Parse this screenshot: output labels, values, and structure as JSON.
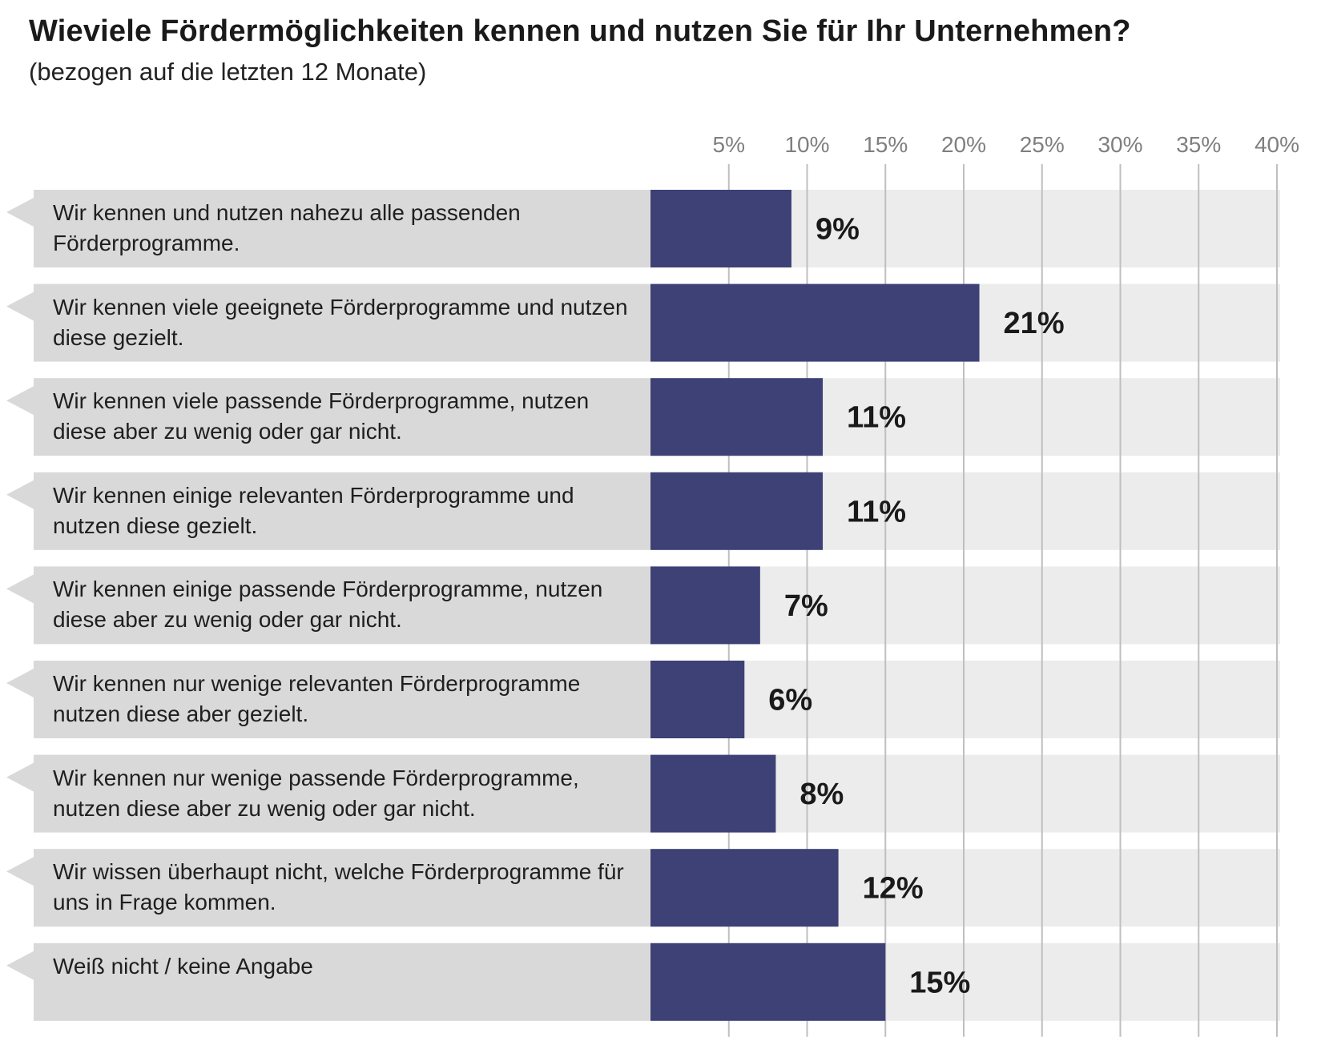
{
  "chart_data": {
    "type": "bar",
    "orientation": "horizontal",
    "title": "Wieviele Fördermöglichkeiten kennen und nutzen Sie für Ihr Unternehmen?",
    "subtitle": "(bezogen auf die letzten 12 Monate)",
    "xlim": [
      0,
      40
    ],
    "xticks": [
      5,
      10,
      15,
      20,
      25,
      30,
      35,
      40
    ],
    "xtick_labels": [
      "5%",
      "10%",
      "15%",
      "20%",
      "25%",
      "30%",
      "35%",
      "40%"
    ],
    "grid": true,
    "categories": [
      "Wir kennen und nutzen nahezu alle passenden Förderprogramme.",
      "Wir kennen viele geeignete Förderprogramme und nutzen diese gezielt.",
      "Wir kennen viele passende Förderprogramme, nutzen diese aber zu wenig oder gar nicht.",
      "Wir kennen einige relevanten Förderprogramme und nutzen diese gezielt.",
      "Wir kennen einige passende Förderprogramme, nutzen diese aber zu wenig oder gar nicht.",
      "Wir kennen nur wenige relevanten Förderprogramme nutzen diese aber gezielt.",
      "Wir kennen nur wenige passende Förderprogramme, nutzen diese aber zu wenig oder gar nicht.",
      "Wir wissen überhaupt nicht, welche Förderprogramme für uns in Frage kommen.",
      "Weiß nicht / keine Angabe"
    ],
    "values": [
      9,
      21,
      11,
      11,
      7,
      6,
      8,
      12,
      15
    ],
    "value_labels": [
      "9%",
      "21%",
      "11%",
      "11%",
      "7%",
      "6%",
      "8%",
      "12%",
      "15%"
    ],
    "colors": {
      "bar": "#3d4175",
      "label_band": "#d9d9d9",
      "plot_band": "#ececec",
      "grid": "#bfbfbf",
      "tick_text": "#7f7f7f"
    }
  }
}
